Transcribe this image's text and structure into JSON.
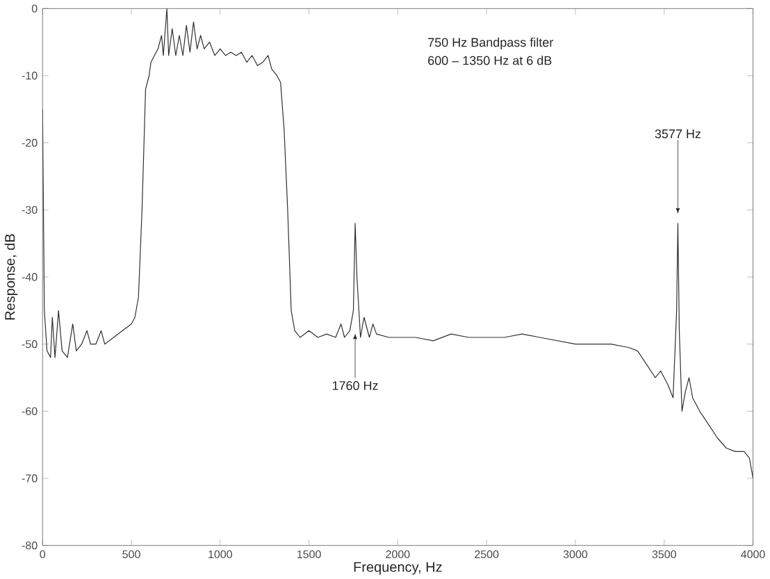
{
  "chart_data": {
    "type": "line",
    "xlabel": "Frequency, Hz",
    "ylabel": "Response, dB",
    "xlim": [
      0,
      4000
    ],
    "ylim": [
      -80,
      0
    ],
    "xticks": [
      0,
      500,
      1000,
      1500,
      2000,
      2500,
      3000,
      3500,
      4000
    ],
    "yticks": [
      -80,
      -70,
      -60,
      -50,
      -40,
      -30,
      -20,
      -10,
      0
    ],
    "grid": false,
    "marker": "none",
    "line_style": "solid",
    "annotations": [
      "750 Hz Bandpass filter",
      "600 – 1350 Hz at 6 dB",
      {
        "text": "1760 Hz",
        "x": 1760,
        "y": -48
      },
      {
        "text": "3577 Hz",
        "x": 3577,
        "y": -31
      }
    ],
    "series": [
      {
        "color": "#303030",
        "x": [
          0,
          10,
          25,
          45,
          55,
          70,
          90,
          110,
          140,
          170,
          190,
          220,
          250,
          270,
          300,
          330,
          350,
          400,
          450,
          500,
          520,
          540,
          560,
          580,
          600,
          610,
          630,
          650,
          670,
          680,
          700,
          710,
          730,
          750,
          770,
          790,
          810,
          830,
          850,
          870,
          890,
          910,
          940,
          970,
          1000,
          1030,
          1060,
          1090,
          1120,
          1150,
          1180,
          1210,
          1240,
          1270,
          1290,
          1320,
          1340,
          1360,
          1380,
          1400,
          1420,
          1450,
          1500,
          1550,
          1600,
          1650,
          1680,
          1700,
          1730,
          1750,
          1760,
          1770,
          1790,
          1810,
          1840,
          1860,
          1880,
          1950,
          2000,
          2100,
          2200,
          2300,
          2400,
          2500,
          2600,
          2700,
          2800,
          2900,
          3000,
          3100,
          3200,
          3300,
          3350,
          3400,
          3450,
          3480,
          3520,
          3550,
          3570,
          3577,
          3585,
          3600,
          3620,
          3640,
          3660,
          3700,
          3750,
          3800,
          3850,
          3900,
          3950,
          3980,
          4000
        ],
        "values": [
          -15,
          -45,
          -51,
          -52,
          -46,
          -52,
          -45,
          -51,
          -52,
          -47,
          -51,
          -50,
          -48,
          -50,
          -50,
          -48,
          -50,
          -49,
          -48,
          -47,
          -46,
          -43,
          -30,
          -12,
          -10,
          -8,
          -7,
          -6,
          -4,
          -7,
          0,
          -7,
          -3,
          -7,
          -4,
          -7,
          -2.5,
          -6.5,
          -2,
          -6,
          -4,
          -6,
          -5,
          -7,
          -6,
          -7,
          -6.5,
          -7,
          -6.5,
          -8,
          -7,
          -8.5,
          -8,
          -7,
          -9,
          -10,
          -11,
          -18,
          -30,
          -45,
          -48,
          -49,
          -48,
          -49,
          -48.5,
          -49,
          -47,
          -49,
          -48,
          -45,
          -32,
          -40,
          -49,
          -46,
          -49,
          -47,
          -48.5,
          -49,
          -49,
          -49,
          -49.5,
          -48.5,
          -49,
          -49,
          -49,
          -48.5,
          -49,
          -49.5,
          -50,
          -50,
          -50,
          -50.5,
          -51,
          -53,
          -55,
          -54,
          -56,
          -58,
          -45,
          -32,
          -48,
          -60,
          -57,
          -55,
          -58,
          -60,
          -62,
          -64,
          -65.5,
          -66,
          -66,
          -67,
          -70
        ]
      }
    ]
  }
}
